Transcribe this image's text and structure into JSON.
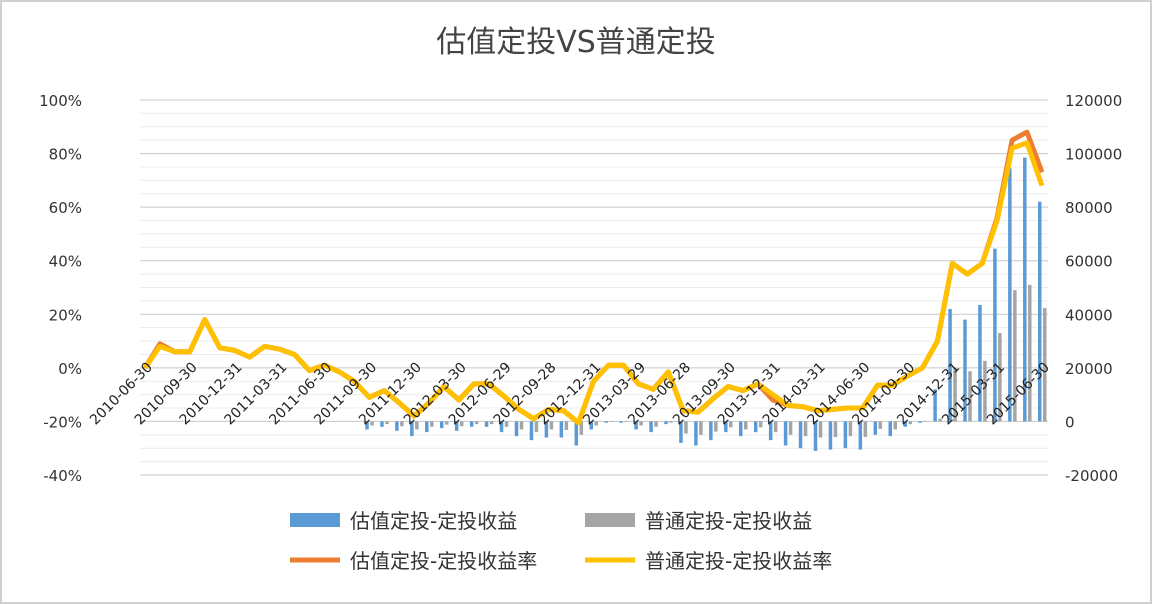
{
  "chart_data": {
    "type": "bar+line",
    "title": "估值定投VS普通定投",
    "x_tick_labels": [
      "2010-06-30",
      "2010-09-30",
      "2010-12-31",
      "2011-03-31",
      "2011-06-30",
      "2011-09-30",
      "2011-12-30",
      "2012-03-30",
      "2012-06-29",
      "2012-09-28",
      "2012-12-31",
      "2013-03-29",
      "2013-06-28",
      "2013-09-30",
      "2013-12-31",
      "2014-03-31",
      "2014-06-30",
      "2014-09-30",
      "2014-12-31",
      "2015-03-31",
      "2015-06-30"
    ],
    "left_axis": {
      "ylim": [
        -0.4,
        1.0
      ],
      "ticks": [
        "-40%",
        "-20%",
        "0%",
        "20%",
        "40%",
        "60%",
        "80%",
        "100%"
      ]
    },
    "right_axis": {
      "ylim": [
        -20000,
        120000
      ],
      "ticks": [
        "-20000",
        "0",
        "20000",
        "40000",
        "60000",
        "80000",
        "100000",
        "120000"
      ]
    },
    "grid": true,
    "legend_position": "bottom",
    "series": [
      {
        "name": "估值定投-定投收益",
        "type": "bar",
        "axis": "right",
        "color": "#5b9bd5",
        "values": [
          0,
          0,
          0,
          0,
          0,
          0,
          0,
          0,
          0,
          0,
          0,
          0,
          0,
          0,
          0,
          -3000,
          -2000,
          -3500,
          -5500,
          -4000,
          -2500,
          -3500,
          -2000,
          -2000,
          -4000,
          -5500,
          -7000,
          -6000,
          -6000,
          -9000,
          -3000,
          -500,
          -500,
          -3000,
          -4000,
          -1000,
          -8000,
          -9000,
          -7000,
          -4000,
          -5500,
          -4000,
          -7000,
          -9000,
          -10000,
          -11000,
          -10500,
          -10000,
          -10500,
          -5000,
          -5500,
          -2000,
          -500,
          12000,
          42000,
          38000,
          43500,
          64500,
          94500,
          98500,
          82000
        ]
      },
      {
        "name": "普通定投-定投收益",
        "type": "bar",
        "axis": "right",
        "color": "#a5a5a5",
        "values": [
          0,
          0,
          0,
          0,
          0,
          0,
          0,
          0,
          0,
          0,
          0,
          0,
          0,
          0,
          0,
          -1500,
          -1000,
          -1800,
          -3000,
          -2000,
          -1200,
          -1800,
          -1000,
          -1000,
          -2000,
          -3000,
          -4000,
          -3000,
          -3200,
          -5000,
          -1500,
          -200,
          -200,
          -1500,
          -2000,
          -500,
          -4500,
          -5000,
          -3800,
          -2200,
          -3000,
          -2200,
          -4000,
          -5000,
          -5500,
          -6000,
          -5800,
          -5500,
          -5800,
          -2800,
          -3000,
          -1000,
          -200,
          1000,
          20000,
          18700,
          22600,
          33000,
          49000,
          51000,
          42300
        ]
      },
      {
        "name": "估值定投-定投收益率",
        "type": "line",
        "axis": "left",
        "color": "#ed7d31",
        "values": [
          0,
          0.09,
          0.06,
          0.06,
          0.18,
          0.075,
          0.065,
          0.04,
          0.08,
          0.07,
          0.05,
          -0.01,
          0.01,
          -0.015,
          -0.05,
          -0.11,
          -0.085,
          -0.13,
          -0.18,
          -0.13,
          -0.07,
          -0.12,
          -0.06,
          -0.06,
          -0.105,
          -0.155,
          -0.19,
          -0.155,
          -0.16,
          -0.205,
          -0.05,
          0.01,
          0.01,
          -0.06,
          -0.08,
          -0.015,
          -0.16,
          -0.165,
          -0.115,
          -0.07,
          -0.085,
          -0.06,
          -0.12,
          -0.14,
          -0.145,
          -0.16,
          -0.155,
          -0.15,
          -0.15,
          -0.065,
          -0.065,
          -0.03,
          0,
          0.1,
          0.39,
          0.35,
          0.39,
          0.56,
          0.85,
          0.88,
          0.73
        ]
      },
      {
        "name": "普通定投-定投收益率",
        "type": "line",
        "axis": "left",
        "color": "#ffc000",
        "values": [
          0,
          0.08,
          0.06,
          0.06,
          0.18,
          0.075,
          0.065,
          0.04,
          0.08,
          0.07,
          0.05,
          -0.01,
          0.01,
          -0.015,
          -0.05,
          -0.11,
          -0.085,
          -0.13,
          -0.18,
          -0.13,
          -0.07,
          -0.12,
          -0.06,
          -0.06,
          -0.105,
          -0.155,
          -0.19,
          -0.155,
          -0.16,
          -0.205,
          -0.05,
          0.01,
          0.01,
          -0.06,
          -0.08,
          -0.015,
          -0.16,
          -0.165,
          -0.115,
          -0.07,
          -0.085,
          -0.06,
          -0.1,
          -0.14,
          -0.145,
          -0.16,
          -0.155,
          -0.15,
          -0.15,
          -0.065,
          -0.065,
          -0.03,
          0,
          0.1,
          0.39,
          0.35,
          0.39,
          0.55,
          0.82,
          0.84,
          0.68
        ]
      }
    ]
  }
}
